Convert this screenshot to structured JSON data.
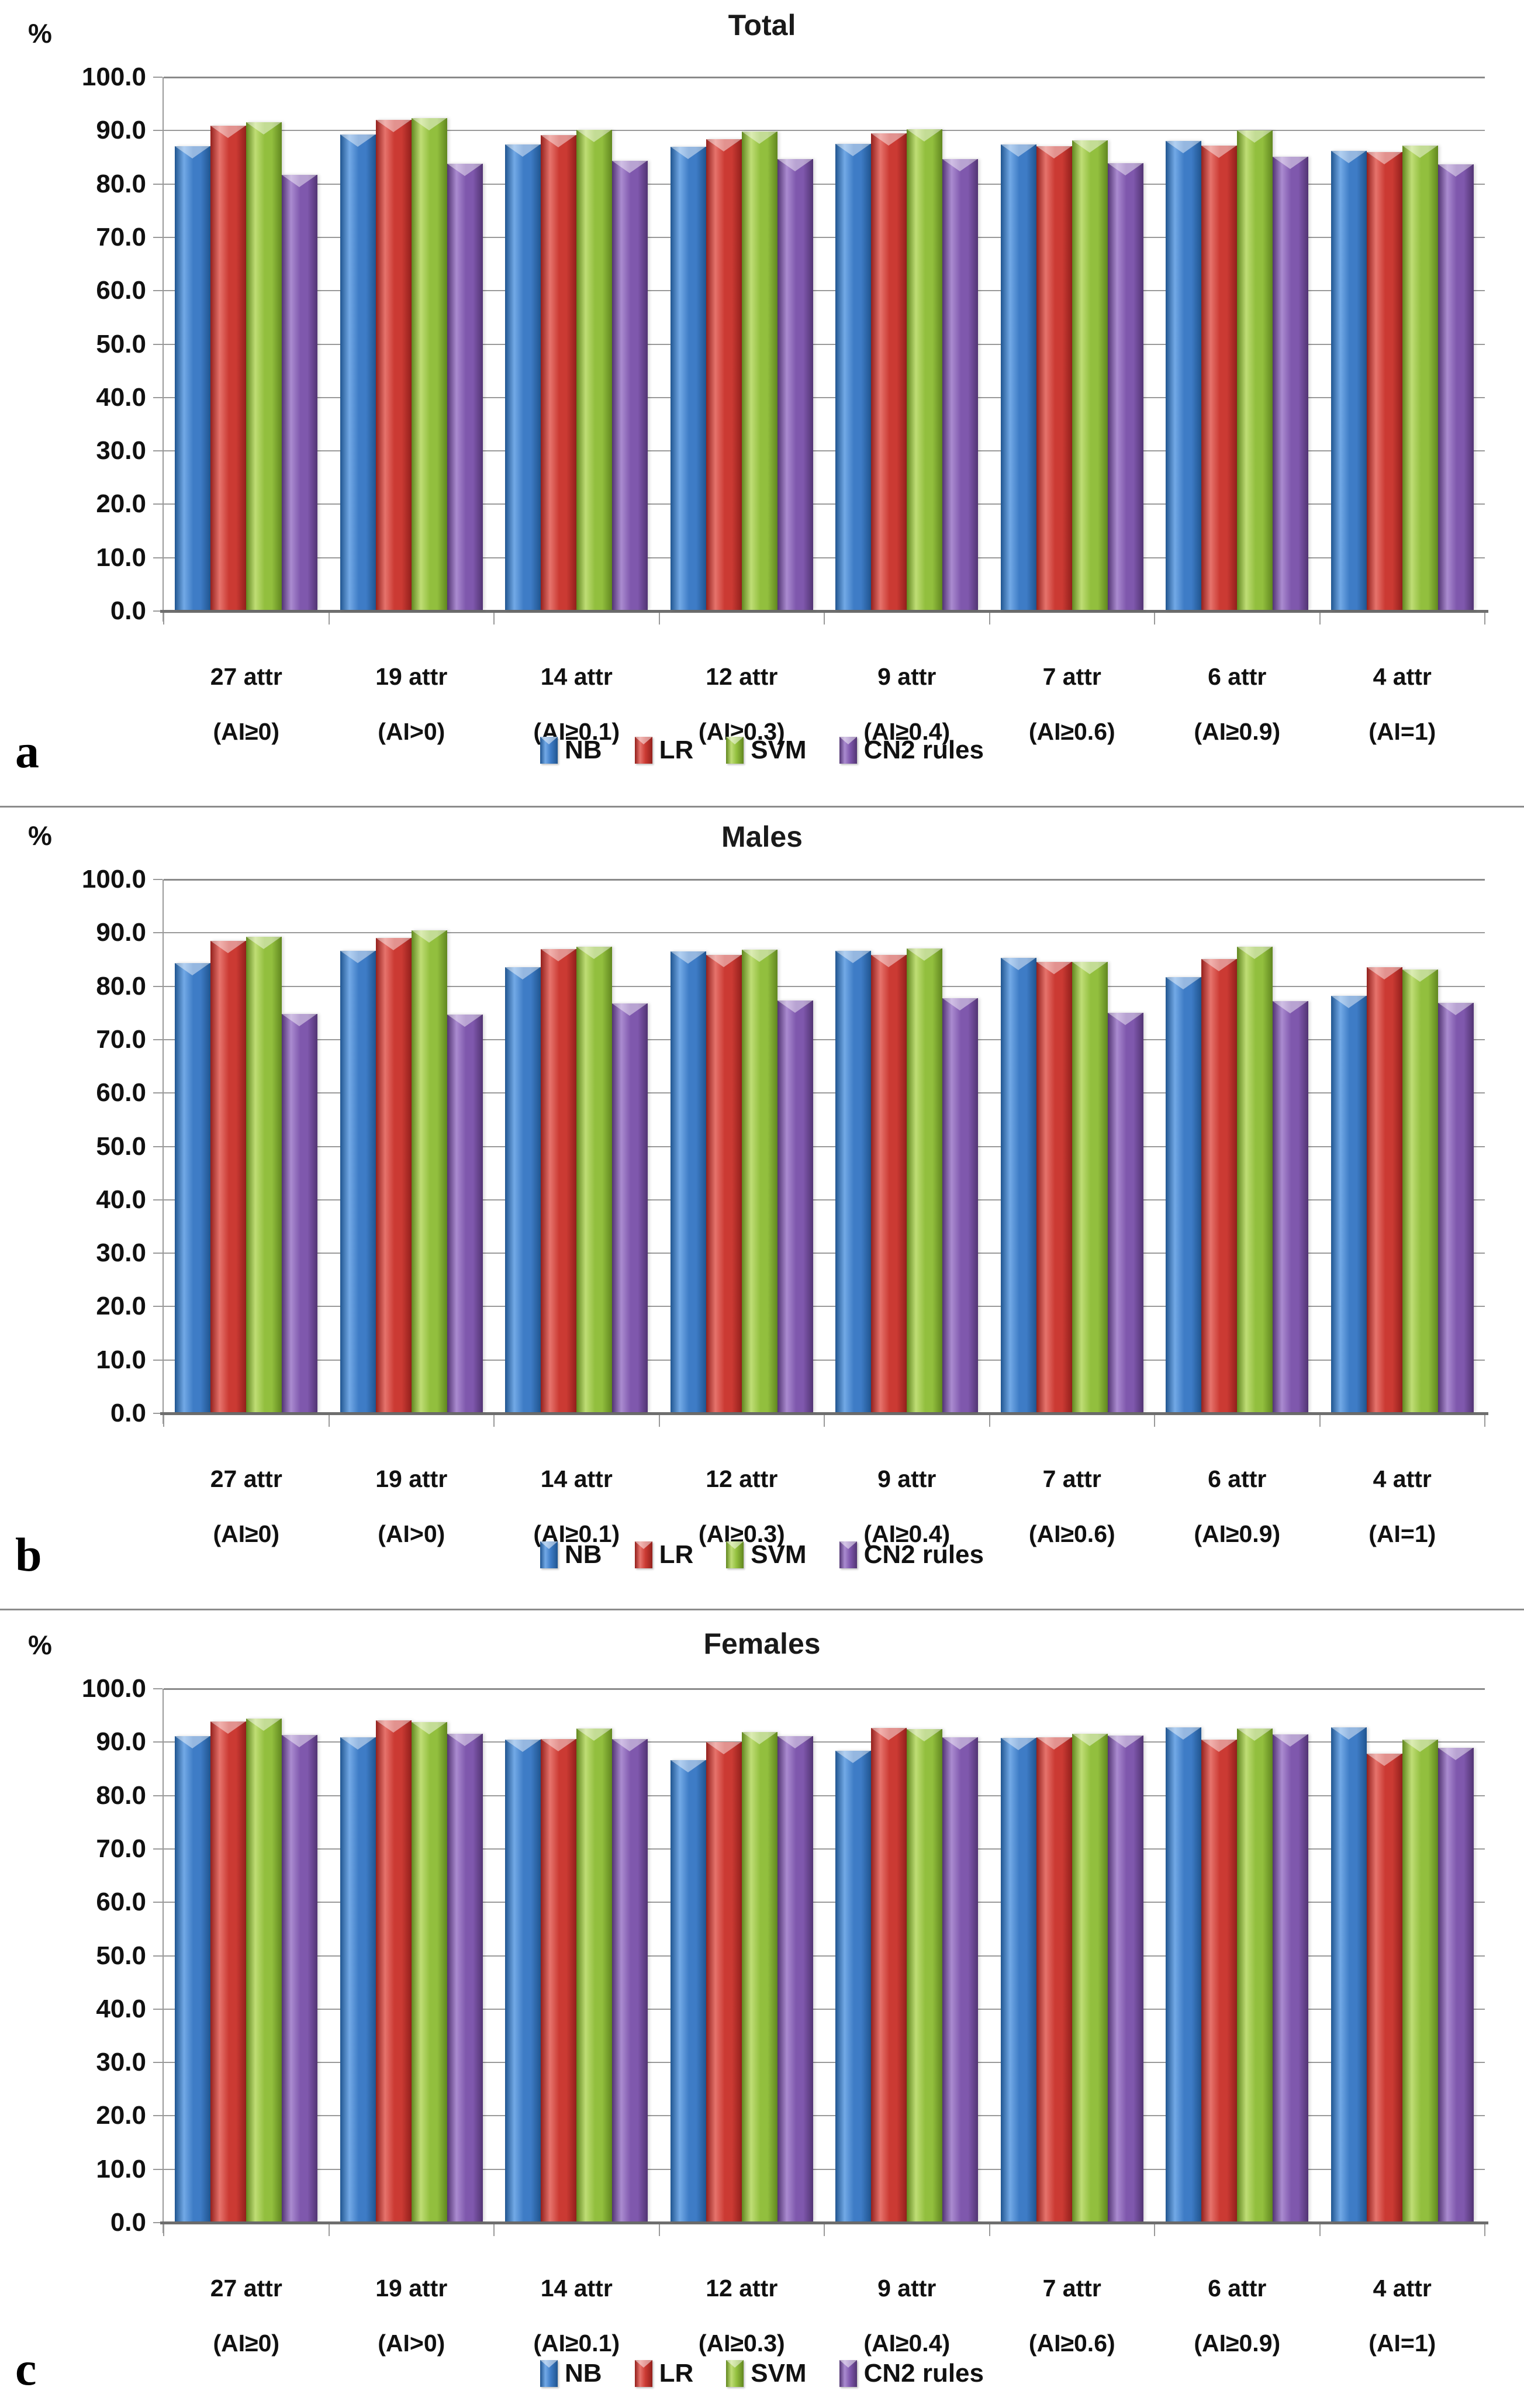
{
  "figure_letters": {
    "a": "a",
    "b": "b",
    "c": "c"
  },
  "axis_style": {
    "grid_color": "#9a9a9a",
    "axis_color": "#6e6e6e"
  },
  "chart_data": [
    {
      "type": "bar",
      "title": "Total",
      "panel_label": "a",
      "ylabel": "%",
      "ylim": [
        0,
        100
      ],
      "ytick_step": 10,
      "grid": true,
      "legend_position": "bottom",
      "categories": [
        {
          "label": "27 attr",
          "condition": "(AI≥0)"
        },
        {
          "label": "19 attr",
          "condition": "(AI>0)"
        },
        {
          "label": "14 attr",
          "condition": "(AI≥0.1)"
        },
        {
          "label": "12 attr",
          "condition": "(AI≥0.3)"
        },
        {
          "label": "9 attr",
          "condition": "(AI≥0.4)"
        },
        {
          "label": "7 attr",
          "condition": "(AI≥0.6)"
        },
        {
          "label": "6 attr",
          "condition": "(AI≥0.9)"
        },
        {
          "label": "4 attr",
          "condition": "(AI=1)"
        }
      ],
      "series": [
        {
          "name": "NB",
          "color": {
            "fill": "#3E7CC6",
            "highlight": "#72A9E6",
            "shadow": "#205590"
          },
          "values": [
            86.9,
            89.1,
            87.2,
            86.7,
            87.3,
            87.2,
            87.8,
            86.0
          ]
        },
        {
          "name": "LR",
          "color": {
            "fill": "#CB3A33",
            "highlight": "#E6736C",
            "shadow": "#93201C"
          },
          "values": [
            90.7,
            91.8,
            88.9,
            88.2,
            89.3,
            86.9,
            87.0,
            85.8
          ]
        },
        {
          "name": "SVM",
          "color": {
            "fill": "#92BF3E",
            "highlight": "#BFDD75",
            "shadow": "#61871F"
          },
          "values": [
            91.3,
            92.1,
            89.9,
            89.6,
            90.0,
            88.0,
            89.8,
            87.0
          ]
        },
        {
          "name": "CN2 rules",
          "color": {
            "fill": "#7F58AD",
            "highlight": "#AA8BD0",
            "shadow": "#523473"
          },
          "values": [
            81.5,
            83.6,
            84.1,
            84.5,
            84.4,
            83.7,
            84.9,
            83.5
          ]
        }
      ]
    },
    {
      "type": "bar",
      "title": "Males",
      "panel_label": "b",
      "ylabel": "%",
      "ylim": [
        0,
        100
      ],
      "ytick_step": 10,
      "grid": true,
      "legend_position": "bottom",
      "categories": [
        {
          "label": "27 attr",
          "condition": "(AI≥0)"
        },
        {
          "label": "19 attr",
          "condition": "(AI>0)"
        },
        {
          "label": "14 attr",
          "condition": "(AI≥0.1)"
        },
        {
          "label": "12 attr",
          "condition": "(AI≥0.3)"
        },
        {
          "label": "9 attr",
          "condition": "(AI≥0.4)"
        },
        {
          "label": "7 attr",
          "condition": "(AI≥0.6)"
        },
        {
          "label": "6 attr",
          "condition": "(AI≥0.9)"
        },
        {
          "label": "4 attr",
          "condition": "(AI=1)"
        }
      ],
      "series": [
        {
          "name": "NB",
          "color": {
            "fill": "#3E7CC6",
            "highlight": "#72A9E6",
            "shadow": "#205590"
          },
          "values": [
            84.1,
            86.4,
            83.4,
            86.3,
            86.4,
            85.1,
            81.5,
            78.0
          ]
        },
        {
          "name": "LR",
          "color": {
            "fill": "#CB3A33",
            "highlight": "#E6736C",
            "shadow": "#93201C"
          },
          "values": [
            88.3,
            88.8,
            86.7,
            85.6,
            85.7,
            84.3,
            84.9,
            83.4
          ]
        },
        {
          "name": "SVM",
          "color": {
            "fill": "#92BF3E",
            "highlight": "#BFDD75",
            "shadow": "#61871F"
          },
          "values": [
            89.0,
            90.2,
            87.2,
            86.6,
            86.9,
            84.3,
            87.2,
            82.9
          ]
        },
        {
          "name": "CN2 rules",
          "color": {
            "fill": "#7F58AD",
            "highlight": "#AA8BD0",
            "shadow": "#523473"
          },
          "values": [
            74.6,
            74.5,
            76.6,
            77.1,
            77.6,
            74.8,
            77.0,
            76.7
          ]
        }
      ]
    },
    {
      "type": "bar",
      "title": "Females",
      "panel_label": "c",
      "ylabel": "%",
      "ylim": [
        0,
        100
      ],
      "ytick_step": 10,
      "grid": true,
      "legend_position": "bottom",
      "categories": [
        {
          "label": "27 attr",
          "condition": "(AI≥0)"
        },
        {
          "label": "19 attr",
          "condition": "(AI>0)"
        },
        {
          "label": "14 attr",
          "condition": "(AI≥0.1)"
        },
        {
          "label": "12 attr",
          "condition": "(AI≥0.3)"
        },
        {
          "label": "9 attr",
          "condition": "(AI≥0.4)"
        },
        {
          "label": "7 attr",
          "condition": "(AI≥0.6)"
        },
        {
          "label": "6 attr",
          "condition": "(AI≥0.9)"
        },
        {
          "label": "4 attr",
          "condition": "(AI=1)"
        }
      ],
      "series": [
        {
          "name": "NB",
          "color": {
            "fill": "#3E7CC6",
            "highlight": "#72A9E6",
            "shadow": "#205590"
          },
          "values": [
            90.9,
            90.7,
            90.3,
            86.4,
            88.2,
            90.6,
            92.5,
            92.6
          ]
        },
        {
          "name": "LR",
          "color": {
            "fill": "#CB3A33",
            "highlight": "#E6736C",
            "shadow": "#93201C"
          },
          "values": [
            93.7,
            93.9,
            90.4,
            89.8,
            92.4,
            90.7,
            90.3,
            87.6
          ]
        },
        {
          "name": "SVM",
          "color": {
            "fill": "#92BF3E",
            "highlight": "#BFDD75",
            "shadow": "#61871F"
          },
          "values": [
            94.2,
            93.5,
            92.3,
            91.7,
            92.2,
            91.3,
            92.3,
            90.3
          ]
        },
        {
          "name": "CN2 rules",
          "color": {
            "fill": "#7F58AD",
            "highlight": "#AA8BD0",
            "shadow": "#523473"
          },
          "values": [
            91.1,
            91.3,
            90.4,
            90.9,
            90.7,
            91.0,
            91.2,
            88.7
          ]
        }
      ]
    }
  ]
}
